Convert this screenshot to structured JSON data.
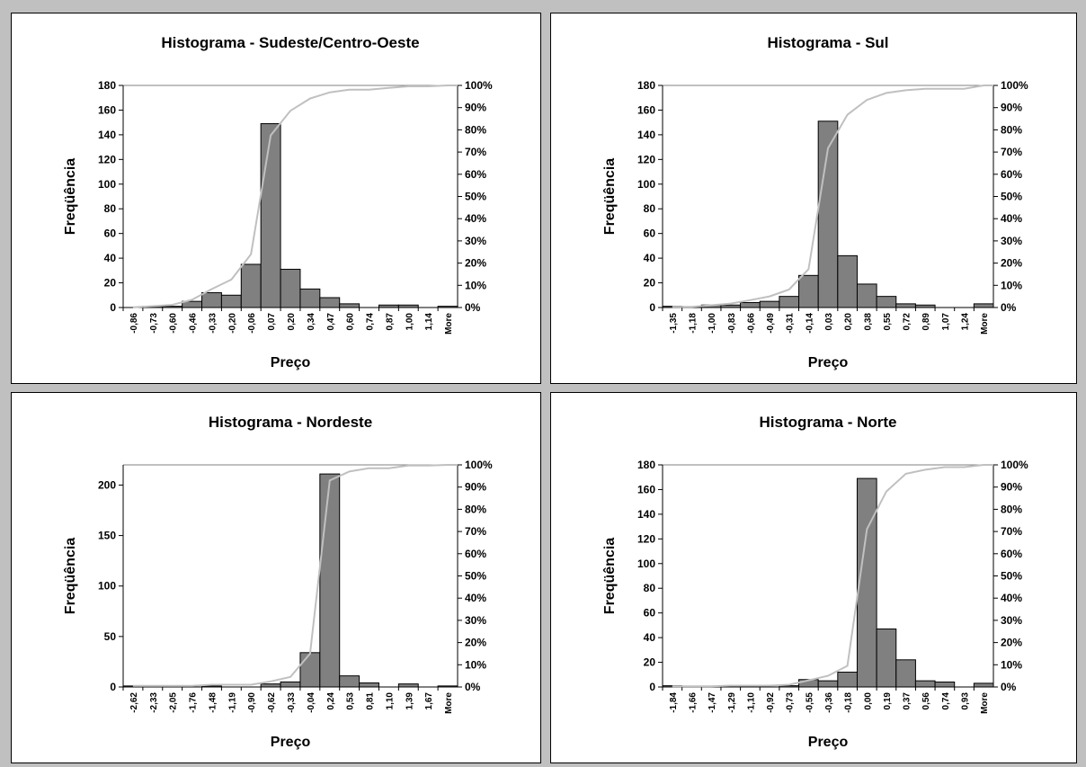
{
  "colors": {
    "bar": "#808080",
    "bar_edge": "#000000",
    "cumulative_line": "#c0c0c0",
    "panel_bg": "#ffffff",
    "page_bg": "#c0c0c0"
  },
  "chart_data": [
    {
      "type": "bar",
      "title": "Histograma - Sudeste/Centro-Oeste",
      "xlabel": "Preço",
      "ylabel": "Freqüência",
      "ylim": [
        0,
        180
      ],
      "yticks": [
        "0",
        "20",
        "40",
        "60",
        "80",
        "100",
        "120",
        "140",
        "160",
        "180"
      ],
      "y2lim": [
        0,
        100
      ],
      "y2ticks": [
        "0%",
        "10%",
        "20%",
        "30%",
        "40%",
        "50%",
        "60%",
        "70%",
        "80%",
        "90%",
        "100%"
      ],
      "categories": [
        "-0,86",
        "-0,73",
        "-0,60",
        "-0,46",
        "-0,33",
        "-0,20",
        "-0,06",
        "0,07",
        "0,20",
        "0,34",
        "0,47",
        "0,60",
        "0,74",
        "0,87",
        "1,00",
        "1,14",
        "More"
      ],
      "series": [
        {
          "type": "bar",
          "values": [
            0,
            1,
            1,
            5,
            12,
            10,
            35,
            149,
            31,
            15,
            8,
            3,
            0,
            2,
            2,
            0,
            1
          ]
        },
        {
          "type": "line",
          "axis": "secondary",
          "values": [
            0.1,
            0.6,
            1.2,
            3.5,
            8.3,
            12.6,
            24.0,
            77.5,
            88.6,
            94.1,
            96.9,
            98.1,
            98.1,
            98.9,
            99.6,
            99.6,
            100
          ]
        }
      ]
    },
    {
      "type": "bar",
      "title": "Histograma - Sul",
      "xlabel": "Preço",
      "ylabel": "Freqüência",
      "ylim": [
        0,
        180
      ],
      "yticks": [
        "0",
        "20",
        "40",
        "60",
        "80",
        "100",
        "120",
        "140",
        "160",
        "180"
      ],
      "y2lim": [
        0,
        100
      ],
      "y2ticks": [
        "0%",
        "10%",
        "20%",
        "30%",
        "40%",
        "50%",
        "60%",
        "70%",
        "80%",
        "90%",
        "100%"
      ],
      "categories": [
        "-1,35",
        "-1,18",
        "-1,00",
        "-0,83",
        "-0,66",
        "-0,49",
        "-0,31",
        "-0,14",
        "0,03",
        "0,20",
        "0,38",
        "0,55",
        "0,72",
        "0,89",
        "1,07",
        "1,24",
        "More"
      ],
      "series": [
        {
          "type": "bar",
          "values": [
            1,
            0,
            2,
            2,
            4,
            5,
            9,
            26,
            151,
            42,
            19,
            9,
            3,
            2,
            0,
            0,
            3
          ]
        },
        {
          "type": "line",
          "axis": "secondary",
          "values": [
            0.3,
            0.3,
            1.0,
            1.8,
            3.3,
            5.0,
            8.1,
            17.3,
            71.7,
            86.8,
            93.5,
            96.6,
            97.8,
            98.5,
            98.5,
            98.5,
            100
          ]
        }
      ]
    },
    {
      "type": "bar",
      "title": "Histograma - Nordeste",
      "xlabel": "Preço",
      "ylabel": "Freqüência",
      "ylim": [
        0,
        220
      ],
      "yticks": [
        "0",
        "50",
        "100",
        "150",
        "200"
      ],
      "y2lim": [
        0,
        100
      ],
      "y2ticks": [
        "0%",
        "10%",
        "20%",
        "30%",
        "40%",
        "50%",
        "60%",
        "70%",
        "80%",
        "90%",
        "100%"
      ],
      "categories": [
        "-2,62",
        "-2,33",
        "-2,05",
        "-1,76",
        "-1,48",
        "-1,19",
        "-0,90",
        "-0,62",
        "-0,33",
        "-0,04",
        "0,24",
        "0,53",
        "0,81",
        "1,10",
        "1,39",
        "1,67",
        "More"
      ],
      "series": [
        {
          "type": "bar",
          "values": [
            1,
            0,
            0,
            0,
            1,
            0,
            0,
            3,
            5,
            34,
            211,
            11,
            4,
            0,
            3,
            0,
            1
          ]
        },
        {
          "type": "line",
          "axis": "secondary",
          "values": [
            0.5,
            0.5,
            0.5,
            0.5,
            1.0,
            1.0,
            1.0,
            2.5,
            4.5,
            15.0,
            93.0,
            97.0,
            98.5,
            98.5,
            99.7,
            99.7,
            100
          ]
        }
      ]
    },
    {
      "type": "bar",
      "title": "Histograma - Norte",
      "xlabel": "Preço",
      "ylabel": "Freqüência",
      "ylim": [
        0,
        180
      ],
      "yticks": [
        "0",
        "20",
        "40",
        "60",
        "80",
        "100",
        "120",
        "140",
        "160",
        "180"
      ],
      "y2lim": [
        0,
        100
      ],
      "y2ticks": [
        "0%",
        "10%",
        "20%",
        "30%",
        "40%",
        "50%",
        "60%",
        "70%",
        "80%",
        "90%",
        "100%"
      ],
      "categories": [
        "-1,84",
        "-1,66",
        "-1,47",
        "-1,29",
        "-1,10",
        "-0,92",
        "-0,73",
        "-0,55",
        "-0,36",
        "-0,18",
        "0,00",
        "0,19",
        "0,37",
        "0,56",
        "0,74",
        "0,93",
        "More"
      ],
      "series": [
        {
          "type": "bar",
          "values": [
            1,
            0,
            0,
            1,
            0,
            0,
            1,
            6,
            5,
            12,
            169,
            47,
            22,
            5,
            4,
            0,
            3
          ]
        },
        {
          "type": "line",
          "axis": "secondary",
          "values": [
            0.3,
            0.3,
            0.3,
            0.6,
            0.6,
            0.6,
            1.0,
            3.0,
            5.0,
            9.5,
            71.0,
            88.0,
            96.0,
            97.8,
            99.0,
            99.0,
            100
          ]
        }
      ]
    }
  ]
}
